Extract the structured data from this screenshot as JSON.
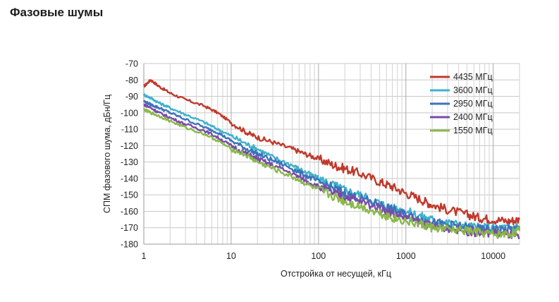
{
  "page": {
    "title": "Фазовые шумы"
  },
  "chart_data": {
    "type": "line",
    "title": "Фазовые шумы",
    "xlabel": "Отстройка от несущей, кГц",
    "ylabel": "СПМ фазового шума, дБн/Гц",
    "xscale": "log",
    "xlim": [
      1,
      20000
    ],
    "ylim": [
      -180,
      -70
    ],
    "xticks": [
      1,
      10,
      100,
      1000,
      10000
    ],
    "xtick_labels": [
      "1",
      "10",
      "100",
      "1000",
      "10000"
    ],
    "yticks": [
      -70,
      -80,
      -90,
      -100,
      -110,
      -120,
      -130,
      -140,
      -150,
      -160,
      -170,
      -180
    ],
    "ytick_labels": [
      "-70",
      "-80",
      "-90",
      "-100",
      "-110",
      "-120",
      "-130",
      "-140",
      "-150",
      "-160",
      "-170",
      "-180"
    ],
    "grid": true,
    "legend_position": "top-right",
    "series": [
      {
        "name": "4435 МГц",
        "color": "#c0392b",
        "x": [
          1,
          1.2,
          1.5,
          2,
          3,
          5,
          7,
          10,
          15,
          20,
          30,
          50,
          70,
          100,
          150,
          200,
          300,
          500,
          700,
          1000,
          1500,
          2000,
          3000,
          5000,
          7000,
          10000,
          15000,
          20000
        ],
        "y": [
          -84,
          -80,
          -84,
          -88,
          -92,
          -96,
          -100,
          -106,
          -112,
          -115,
          -118,
          -122,
          -125,
          -128,
          -132,
          -134,
          -137,
          -142,
          -145,
          -149,
          -153,
          -156,
          -159,
          -162,
          -164,
          -165,
          -166,
          -165
        ]
      },
      {
        "name": "3600 МГц",
        "color": "#3fb1cc",
        "x": [
          1,
          1.2,
          1.5,
          2,
          3,
          5,
          7,
          10,
          15,
          20,
          30,
          50,
          70,
          100,
          150,
          200,
          300,
          500,
          700,
          1000,
          1500,
          2000,
          3000,
          5000,
          7000,
          10000,
          15000,
          20000
        ],
        "y": [
          -89,
          -91,
          -94,
          -97,
          -101,
          -106,
          -110,
          -114,
          -119,
          -122,
          -127,
          -132,
          -136,
          -140,
          -144,
          -147,
          -150,
          -155,
          -158,
          -160,
          -163,
          -165,
          -167,
          -169,
          -170,
          -170,
          -170,
          -169
        ]
      },
      {
        "name": "2950 МГц",
        "color": "#3b73b9",
        "x": [
          1,
          1.2,
          1.5,
          2,
          3,
          5,
          7,
          10,
          15,
          20,
          30,
          50,
          70,
          100,
          150,
          200,
          300,
          500,
          700,
          1000,
          1500,
          2000,
          3000,
          5000,
          7000,
          10000,
          15000,
          20000
        ],
        "y": [
          -93,
          -95,
          -97,
          -100,
          -104,
          -109,
          -112,
          -117,
          -122,
          -125,
          -129,
          -134,
          -138,
          -142,
          -146,
          -149,
          -152,
          -156,
          -159,
          -162,
          -165,
          -167,
          -168,
          -170,
          -171,
          -171,
          -171,
          -171
        ]
      },
      {
        "name": "2400 МГц",
        "color": "#7b4aa8",
        "x": [
          1,
          1.2,
          1.5,
          2,
          3,
          5,
          7,
          10,
          15,
          20,
          30,
          50,
          70,
          100,
          150,
          200,
          300,
          500,
          700,
          1000,
          1500,
          2000,
          3000,
          5000,
          7000,
          10000,
          15000,
          20000
        ],
        "y": [
          -95,
          -97,
          -100,
          -103,
          -107,
          -111,
          -115,
          -120,
          -125,
          -128,
          -132,
          -137,
          -141,
          -145,
          -149,
          -151,
          -154,
          -158,
          -161,
          -164,
          -167,
          -169,
          -170,
          -172,
          -173,
          -173,
          -174,
          -176
        ]
      },
      {
        "name": "1550 МГц",
        "color": "#8ab84a",
        "x": [
          1,
          1.2,
          1.5,
          2,
          3,
          5,
          7,
          10,
          15,
          20,
          30,
          50,
          70,
          100,
          150,
          200,
          300,
          500,
          700,
          1000,
          1500,
          2000,
          3000,
          5000,
          7000,
          10000,
          15000,
          20000
        ],
        "y": [
          -98,
          -100,
          -102,
          -105,
          -109,
          -113,
          -117,
          -122,
          -126,
          -130,
          -134,
          -139,
          -143,
          -147,
          -151,
          -154,
          -157,
          -161,
          -164,
          -166,
          -168,
          -170,
          -171,
          -172,
          -173,
          -174,
          -174,
          -172
        ]
      }
    ]
  }
}
